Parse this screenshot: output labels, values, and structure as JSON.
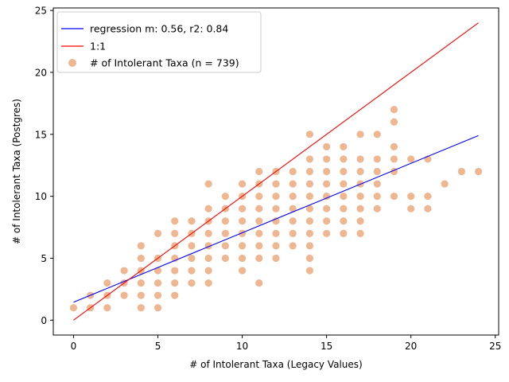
{
  "chart_data": {
    "type": "scatter",
    "xlabel": "# of Intolerant Taxa (Legacy Values)",
    "ylabel": "# of Intolerant Taxa (Postgres)",
    "xlim": [
      -1.2,
      25.2
    ],
    "ylim": [
      -1.2,
      25.2
    ],
    "xticks": [
      0,
      5,
      10,
      15,
      20,
      25
    ],
    "yticks": [
      0,
      5,
      10,
      15,
      20,
      25
    ],
    "legend_position": "top-left",
    "grid": false,
    "colors": {
      "scatter": "#e07b39",
      "regression": "#0000ff",
      "identity": "#ff0000"
    },
    "series": [
      {
        "name": "regression m: 0.56, r2: 0.84",
        "kind": "line",
        "points": [
          [
            0,
            1.45
          ],
          [
            24,
            14.9
          ]
        ]
      },
      {
        "name": "1:1",
        "kind": "line",
        "points": [
          [
            0,
            0
          ],
          [
            24,
            24
          ]
        ]
      },
      {
        "name": "# of Intolerant Taxa (n = 739)",
        "kind": "scatter",
        "points": [
          [
            0,
            1
          ],
          [
            1,
            1
          ],
          [
            1,
            2
          ],
          [
            2,
            1
          ],
          [
            2,
            2
          ],
          [
            2,
            3
          ],
          [
            3,
            2
          ],
          [
            3,
            3
          ],
          [
            3,
            4
          ],
          [
            4,
            1
          ],
          [
            4,
            2
          ],
          [
            4,
            3
          ],
          [
            4,
            4
          ],
          [
            4,
            5
          ],
          [
            4,
            6
          ],
          [
            5,
            1
          ],
          [
            5,
            2
          ],
          [
            5,
            3
          ],
          [
            5,
            4
          ],
          [
            5,
            5
          ],
          [
            5,
            7
          ],
          [
            6,
            2
          ],
          [
            6,
            3
          ],
          [
            6,
            4
          ],
          [
            6,
            5
          ],
          [
            6,
            6
          ],
          [
            6,
            7
          ],
          [
            6,
            8
          ],
          [
            7,
            3
          ],
          [
            7,
            4
          ],
          [
            7,
            5
          ],
          [
            7,
            6
          ],
          [
            7,
            7
          ],
          [
            7,
            8
          ],
          [
            8,
            3
          ],
          [
            8,
            4
          ],
          [
            8,
            5
          ],
          [
            8,
            6
          ],
          [
            8,
            7
          ],
          [
            8,
            8
          ],
          [
            8,
            9
          ],
          [
            8,
            11
          ],
          [
            9,
            5
          ],
          [
            9,
            6
          ],
          [
            9,
            7
          ],
          [
            9,
            8
          ],
          [
            9,
            9
          ],
          [
            9,
            10
          ],
          [
            10,
            4
          ],
          [
            10,
            5
          ],
          [
            10,
            6
          ],
          [
            10,
            7
          ],
          [
            10,
            8
          ],
          [
            10,
            9
          ],
          [
            10,
            10
          ],
          [
            10,
            11
          ],
          [
            11,
            3
          ],
          [
            11,
            5
          ],
          [
            11,
            6
          ],
          [
            11,
            7
          ],
          [
            11,
            8
          ],
          [
            11,
            9
          ],
          [
            11,
            10
          ],
          [
            11,
            11
          ],
          [
            11,
            12
          ],
          [
            12,
            5
          ],
          [
            12,
            6
          ],
          [
            12,
            7
          ],
          [
            12,
            8
          ],
          [
            12,
            9
          ],
          [
            12,
            10
          ],
          [
            12,
            11
          ],
          [
            12,
            12
          ],
          [
            13,
            6
          ],
          [
            13,
            7
          ],
          [
            13,
            8
          ],
          [
            13,
            9
          ],
          [
            13,
            10
          ],
          [
            13,
            11
          ],
          [
            13,
            12
          ],
          [
            14,
            4
          ],
          [
            14,
            5
          ],
          [
            14,
            6
          ],
          [
            14,
            7
          ],
          [
            14,
            8
          ],
          [
            14,
            9
          ],
          [
            14,
            10
          ],
          [
            14,
            11
          ],
          [
            14,
            12
          ],
          [
            14,
            13
          ],
          [
            14,
            15
          ],
          [
            15,
            7
          ],
          [
            15,
            8
          ],
          [
            15,
            9
          ],
          [
            15,
            10
          ],
          [
            15,
            11
          ],
          [
            15,
            12
          ],
          [
            15,
            13
          ],
          [
            15,
            14
          ],
          [
            16,
            7
          ],
          [
            16,
            8
          ],
          [
            16,
            9
          ],
          [
            16,
            10
          ],
          [
            16,
            11
          ],
          [
            16,
            12
          ],
          [
            16,
            13
          ],
          [
            16,
            14
          ],
          [
            17,
            7
          ],
          [
            17,
            8
          ],
          [
            17,
            9
          ],
          [
            17,
            10
          ],
          [
            17,
            11
          ],
          [
            17,
            12
          ],
          [
            17,
            13
          ],
          [
            17,
            15
          ],
          [
            18,
            9
          ],
          [
            18,
            10
          ],
          [
            18,
            11
          ],
          [
            18,
            12
          ],
          [
            18,
            13
          ],
          [
            18,
            15
          ],
          [
            19,
            10
          ],
          [
            19,
            12
          ],
          [
            19,
            13
          ],
          [
            19,
            14
          ],
          [
            19,
            16
          ],
          [
            19,
            17
          ],
          [
            20,
            9
          ],
          [
            20,
            10
          ],
          [
            20,
            13
          ],
          [
            21,
            9
          ],
          [
            21,
            10
          ],
          [
            21,
            13
          ],
          [
            22,
            11
          ],
          [
            23,
            12
          ],
          [
            24,
            12
          ]
        ]
      }
    ]
  }
}
